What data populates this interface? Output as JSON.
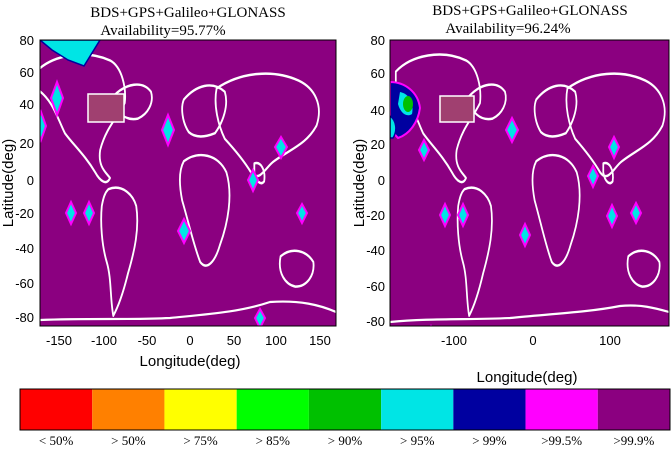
{
  "panels": [
    {
      "title": "BDS+GPS+Galileo+GLONASS",
      "availability": "Availability=95.77%",
      "xlabel": "Longitude(deg)",
      "ylabel": "Latitude(deg)",
      "xticks": [
        "-150",
        "-100",
        "-50",
        "0",
        "50",
        "100",
        "150"
      ],
      "yticks": [
        "80",
        "60",
        "40",
        "20",
        "0",
        "-20",
        "-40",
        "-60",
        "-80"
      ]
    },
    {
      "title": "BDS+GPS+Galileo+GLONASS",
      "availability": "Availability=96.24%",
      "xlabel": "Longitude(deg)",
      "ylabel": "Latitude(deg)",
      "xticks": [
        "-100",
        "0",
        "100"
      ],
      "yticks": [
        "80",
        "60",
        "40",
        "20",
        "0",
        "-20",
        "-40",
        "-60",
        "-80"
      ]
    }
  ],
  "legend": [
    {
      "label": "< 50%",
      "color": "#ff0000"
    },
    {
      "label": "> 50%",
      "color": "#ff8000"
    },
    {
      "label": "> 75%",
      "color": "#ffff00"
    },
    {
      "label": "> 85%",
      "color": "#00ff00"
    },
    {
      "label": "> 90%",
      "color": "#00c000"
    },
    {
      "label": "> 95%",
      "color": "#00e5e5"
    },
    {
      "label": "> 99%",
      "color": "#0000a0"
    },
    {
      "label": ">99.5%",
      "color": "#ff00ff"
    },
    {
      "label": ">99.9%",
      "color": "#8b0080"
    }
  ],
  "colors": {
    "background": "#8b0080",
    "coast": "#ffffff"
  }
}
